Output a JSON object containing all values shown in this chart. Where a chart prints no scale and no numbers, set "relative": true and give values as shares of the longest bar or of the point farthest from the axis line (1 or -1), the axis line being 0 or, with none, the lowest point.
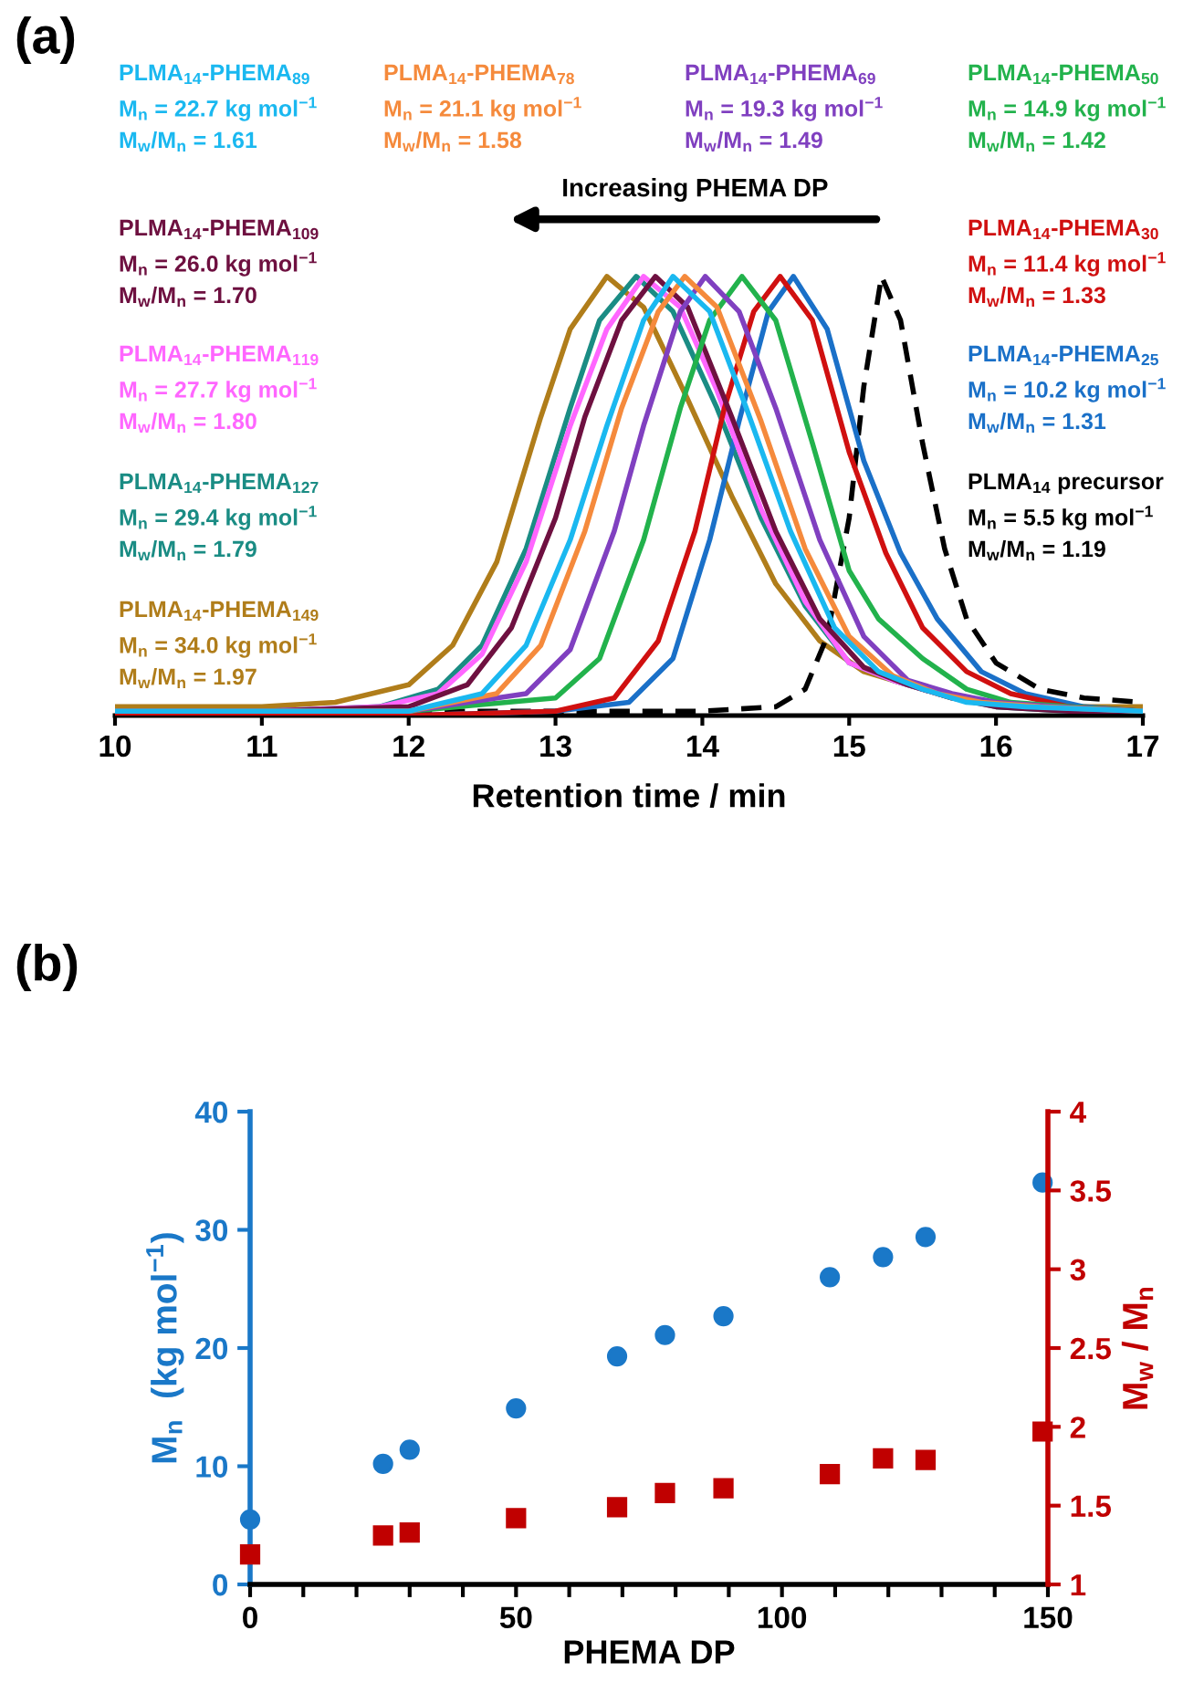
{
  "chart_data": [
    {
      "type": "line",
      "title": "(a)",
      "relative": true,
      "xlabel": "Retention time / min",
      "xlim": [
        10,
        17
      ],
      "xticks": [
        10,
        11,
        12,
        13,
        14,
        15,
        16,
        17
      ],
      "tick_labels": "x",
      "grid": false,
      "annotations": [
        "Increasing PHEMA DP"
      ],
      "series": [
        {
          "name": "PLMA$_{14}$-PHEMA$_{89}$\nM$_{n}$ = 22.7 kg mol$^{−1}$\nM$_{w}$/M$_{n}$ = 1.61",
          "color": "#1ab8f0",
          "x": [
            10,
            11,
            12,
            12.5,
            12.8,
            13.1,
            13.35,
            13.6,
            13.8,
            14.05,
            14.3,
            14.6,
            14.9,
            15.2,
            15.5,
            15.8,
            16.2,
            17
          ],
          "values": [
            0.01,
            0.01,
            0.01,
            0.05,
            0.16,
            0.4,
            0.66,
            0.9,
            1,
            0.92,
            0.7,
            0.42,
            0.2,
            0.1,
            0.06,
            0.03,
            0.02,
            0.01
          ]
        },
        {
          "name": "PLMA$_{14}$-PHEMA$_{78}$\nM$_{n}$ = 21.1 kg mol$^{−1}$\nM$_{w}$/M$_{n}$ = 1.58",
          "color": "#f58a3c",
          "x": [
            10,
            11,
            12,
            12.6,
            12.9,
            13.2,
            13.45,
            13.7,
            13.88,
            14.1,
            14.4,
            14.7,
            15,
            15.3,
            15.6,
            15.9,
            16.3,
            17
          ],
          "values": [
            0.01,
            0.01,
            0.01,
            0.05,
            0.16,
            0.42,
            0.7,
            0.92,
            1,
            0.93,
            0.67,
            0.38,
            0.18,
            0.09,
            0.05,
            0.03,
            0.02,
            0.01
          ]
        },
        {
          "name": "PLMA$_{14}$-PHEMA$_{69}$\nM$_{n}$ = 19.3 kg mol$^{−1}$\nM$_{w}$/M$_{n}$ = 1.49",
          "color": "#8040c0",
          "x": [
            10,
            11,
            12,
            12.8,
            13.1,
            13.4,
            13.6,
            13.85,
            14.02,
            14.25,
            14.5,
            14.8,
            15.1,
            15.4,
            15.7,
            16,
            16.4,
            17
          ],
          "values": [
            0.01,
            0.01,
            0.01,
            0.05,
            0.15,
            0.42,
            0.66,
            0.92,
            1,
            0.92,
            0.7,
            0.4,
            0.18,
            0.08,
            0.05,
            0.03,
            0.02,
            0.01
          ]
        },
        {
          "name": "PLMA$_{14}$-PHEMA$_{50}$\nM$_{n}$ = 14.9 kg mol$^{−1}$\nM$_{w}$/M$_{n}$ = 1.42",
          "color": "#22b24c",
          "x": [
            10,
            11,
            12,
            13,
            13.3,
            13.6,
            13.85,
            14.05,
            14.27,
            14.5,
            14.75,
            15,
            15.2,
            15.5,
            15.8,
            16.1,
            16.5,
            17
          ],
          "values": [
            0.01,
            0.01,
            0.01,
            0.04,
            0.13,
            0.4,
            0.7,
            0.9,
            1,
            0.9,
            0.62,
            0.33,
            0.22,
            0.13,
            0.06,
            0.03,
            0.02,
            0.01
          ]
        },
        {
          "name": "PLMA$_{14}$-PHEMA$_{109}$\nM$_{n}$ = 26.0 kg mol$^{−1}$\nM$_{w}$/M$_{n}$ = 1.70",
          "color": "#6e1040",
          "x": [
            10,
            11,
            12,
            12.4,
            12.7,
            13,
            13.2,
            13.45,
            13.68,
            13.9,
            14.2,
            14.5,
            14.8,
            15.1,
            15.4,
            15.7,
            16,
            16.5,
            17
          ],
          "values": [
            0.01,
            0.01,
            0.02,
            0.07,
            0.2,
            0.45,
            0.68,
            0.9,
            1,
            0.93,
            0.68,
            0.42,
            0.22,
            0.11,
            0.07,
            0.04,
            0.02,
            0.01,
            0.01
          ]
        },
        {
          "name": "PLMA$_{14}$-PHEMA$_{30}$\nM$_{n}$ = 11.4 kg mol$^{−1}$\nM$_{w}$/M$_{n}$ = 1.33",
          "color": "#d01010",
          "x": [
            10,
            11,
            12,
            13,
            13.4,
            13.7,
            13.95,
            14.15,
            14.35,
            14.53,
            14.75,
            15,
            15.25,
            15.5,
            15.8,
            16.1,
            16.5,
            17
          ],
          "values": [
            0,
            0,
            0,
            0.01,
            0.04,
            0.17,
            0.42,
            0.7,
            0.92,
            1,
            0.9,
            0.6,
            0.37,
            0.2,
            0.1,
            0.05,
            0.02,
            0.01
          ]
        },
        {
          "name": "PLMA$_{14}$-PHEMA$_{119}$\nM$_{n}$ = 27.7 kg mol$^{−1}$\nM$_{w}$/M$_{n}$ = 1.80",
          "color": "#ff66ff",
          "x": [
            10,
            11,
            11.8,
            12.2,
            12.5,
            12.8,
            13.1,
            13.35,
            13.6,
            13.85,
            14.1,
            14.4,
            14.7,
            15,
            15.3,
            15.6
          ],
          "values": [
            0.01,
            0.01,
            0.02,
            0.05,
            0.14,
            0.35,
            0.66,
            0.88,
            1,
            0.93,
            0.74,
            0.47,
            0.26,
            0.12,
            0.08,
            0.05
          ]
        },
        {
          "name": "PLMA$_{14}$-PHEMA$_{25}$\nM$_{n}$ = 10.2 kg mol$^{−1}$\nM$_{w}$/M$_{n}$ = 1.31",
          "color": "#1a70c8",
          "x": [
            10,
            11,
            12,
            13,
            13.5,
            13.8,
            14.05,
            14.25,
            14.45,
            14.62,
            14.85,
            15.1,
            15.35,
            15.6,
            15.9,
            16.2,
            16.6,
            17
          ],
          "values": [
            0,
            0,
            0,
            0.01,
            0.03,
            0.13,
            0.4,
            0.67,
            0.92,
            1,
            0.88,
            0.58,
            0.37,
            0.22,
            0.1,
            0.05,
            0.02,
            0.01
          ]
        },
        {
          "name": "PLMA$_{14}$-PHEMA$_{127}$\nM$_{n}$ = 29.4 kg mol$^{−1}$\nM$_{w}$/M$_{n}$ = 1.79",
          "color": "#1a8c84",
          "x": [
            10,
            11,
            11.8,
            12.2,
            12.5,
            12.8,
            13.1,
            13.3,
            13.55,
            13.8,
            14.1,
            14.4,
            14.7,
            15,
            15.3,
            15.6,
            16,
            16.5,
            17
          ],
          "values": [
            0.01,
            0.01,
            0.02,
            0.06,
            0.16,
            0.38,
            0.7,
            0.9,
            1,
            0.92,
            0.7,
            0.45,
            0.25,
            0.12,
            0.08,
            0.05,
            0.02,
            0.01,
            0.01
          ]
        },
        {
          "name": "PLMA$_{14}$ precursor\nM$_{n}$ = 5.5 kg mol$^{−1}$\nM$_{w}$/M$_{n}$ = 1.19",
          "color": "#000000",
          "line_style": "dashed",
          "x": [
            10,
            11,
            12,
            13,
            14,
            14.5,
            14.7,
            14.85,
            15,
            15.1,
            15.22,
            15.35,
            15.5,
            15.65,
            15.8,
            16,
            16.3,
            16.6,
            17
          ],
          "values": [
            0.01,
            0.01,
            0.01,
            0.01,
            0.01,
            0.02,
            0.06,
            0.18,
            0.45,
            0.75,
            1,
            0.9,
            0.62,
            0.38,
            0.22,
            0.12,
            0.06,
            0.04,
            0.03
          ]
        },
        {
          "name": "PLMA$_{14}$-PHEMA$_{149}$\nM$_{n}$ = 34.0 kg mol$^{−1}$\nM$_{w}$/M$_{n}$ = 1.97",
          "color": "#b07d1a",
          "x": [
            10,
            11,
            11.5,
            12,
            12.3,
            12.6,
            12.9,
            13.1,
            13.35,
            13.6,
            13.9,
            14.2,
            14.5,
            14.8,
            15.1,
            15.4,
            15.7,
            16,
            16.5,
            17
          ],
          "values": [
            0.02,
            0.02,
            0.03,
            0.07,
            0.16,
            0.35,
            0.68,
            0.88,
            1,
            0.93,
            0.72,
            0.5,
            0.3,
            0.17,
            0.1,
            0.07,
            0.04,
            0.03,
            0.02,
            0.02
          ]
        }
      ]
    },
    {
      "type": "scatter",
      "title": "(b)",
      "xlabel": "PHEMA DP",
      "ylabel": "M$_{n}$  (kg mol$^{−1}$)",
      "y2label": "M$_{w}$ / M$_{n}$",
      "grid": false,
      "xlim": [
        0,
        150
      ],
      "xticks": [
        0,
        {
          "value": 10,
          "label": null
        },
        {
          "value": 20,
          "label": null
        },
        {
          "value": 30,
          "label": null
        },
        {
          "value": 40,
          "label": null
        },
        50,
        {
          "value": 60,
          "label": null
        },
        {
          "value": 70,
          "label": null
        },
        {
          "value": 80,
          "label": null
        },
        {
          "value": 90,
          "label": null
        },
        100,
        {
          "value": 110,
          "label": null
        },
        {
          "value": 120,
          "label": null
        },
        {
          "value": 130,
          "label": null
        },
        {
          "value": 140,
          "label": null
        },
        150
      ],
      "ylim": [
        0,
        40
      ],
      "yticks": [
        0,
        10,
        20,
        30,
        40
      ],
      "y2lim": [
        1,
        4
      ],
      "y2ticks": [
        1,
        1.5,
        2,
        2.5,
        3,
        3.5,
        4
      ],
      "x": [
        0,
        25,
        30,
        50,
        69,
        78,
        89,
        109,
        119,
        127,
        149
      ],
      "series": [
        {
          "color": "#1a78c8",
          "marker": "circle",
          "values": [
            5.5,
            10.2,
            11.4,
            14.9,
            19.3,
            21.1,
            22.7,
            26.0,
            27.7,
            29.4,
            34.0
          ]
        },
        {
          "color": "#c00000",
          "marker": "square",
          "axis": "y2",
          "values": [
            1.19,
            1.31,
            1.33,
            1.42,
            1.49,
            1.58,
            1.61,
            1.7,
            1.8,
            1.79,
            1.97
          ]
        }
      ]
    }
  ]
}
